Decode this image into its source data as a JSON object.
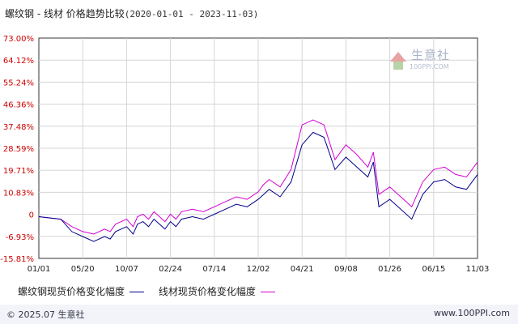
{
  "header": {
    "title": "螺纹钢 - 线材  价格趋势比较",
    "date_range": "(2020-01-01 - 2023-11-03)"
  },
  "watermark": {
    "name": "生意社",
    "url": "100PPI.COM"
  },
  "footer": {
    "copyright": "© 2025.07 生意社",
    "site": "www.100PPI.com"
  },
  "colors": {
    "series1": "#00008b",
    "series2": "#d400d4",
    "grid": "#d5d5d5",
    "axis": "#333333"
  },
  "chart_data": {
    "type": "line",
    "title": "螺纹钢 - 线材  价格趋势比较",
    "subtitle": "(2020-01-01 - 2023-11-03)",
    "x_ticks": [
      "01/01",
      "05/20",
      "10/07",
      "02/24",
      "07/14",
      "12/02",
      "04/21",
      "09/08",
      "01/26",
      "06/15",
      "11/03"
    ],
    "y_ticks": [
      "73.00%",
      "64.12%",
      "55.24%",
      "46.36%",
      "37.48%",
      "28.59%",
      "19.71%",
      "10.83%",
      "0",
      "-6.93%",
      "-15.81%"
    ],
    "ylim": [
      -15.81,
      73.0
    ],
    "grid": true,
    "legend_position": "bottom",
    "series": [
      {
        "name": "螺纹钢现货价格变化幅度",
        "color": "#00008b",
        "x": [
          0,
          2,
          3,
          4,
          5,
          6,
          6.5,
          7,
          8,
          8.6,
          9,
          9.5,
          10,
          10.5,
          11,
          11.5,
          12,
          12.5,
          13,
          14,
          15,
          16,
          17,
          18,
          19,
          20,
          20.5,
          21,
          22,
          23,
          24,
          25,
          26,
          27,
          28,
          29,
          30,
          30.5,
          31,
          32,
          33,
          34,
          35,
          36,
          37,
          38,
          39,
          40
        ],
        "y": [
          1,
          0,
          -5,
          -7,
          -9,
          -7,
          -8,
          -5,
          -3,
          -6,
          -2,
          -1,
          -3,
          0,
          -2,
          -4,
          -1,
          -3,
          0,
          1,
          0,
          2,
          4,
          6,
          5,
          8,
          10,
          12,
          9,
          15,
          30,
          35,
          33,
          20,
          25,
          21,
          17,
          23,
          5,
          8,
          4,
          0,
          10,
          15,
          16,
          13,
          12,
          18
        ]
      },
      {
        "name": "线材现货价格变化幅度",
        "color": "#d400d4",
        "x": [
          0,
          2,
          3,
          4,
          5,
          6,
          6.5,
          7,
          8,
          8.6,
          9,
          9.5,
          10,
          10.5,
          11,
          11.5,
          12,
          12.5,
          13,
          14,
          15,
          16,
          17,
          18,
          19,
          20,
          20.5,
          21,
          22,
          23,
          24,
          25,
          26,
          27,
          28,
          29,
          30,
          30.5,
          31,
          32,
          33,
          34,
          35,
          36,
          37,
          38,
          39,
          40
        ],
        "y": [
          1,
          0,
          -3,
          -5,
          -6,
          -4,
          -5,
          -2,
          0,
          -3,
          1,
          2,
          0,
          3,
          1,
          -1,
          2,
          0,
          3,
          4,
          3,
          5,
          7,
          9,
          8,
          11,
          14,
          16,
          13,
          20,
          38,
          40,
          38,
          24,
          30,
          26,
          21,
          27,
          10,
          13,
          9,
          5,
          15,
          20,
          21,
          18,
          17,
          23
        ]
      }
    ]
  }
}
